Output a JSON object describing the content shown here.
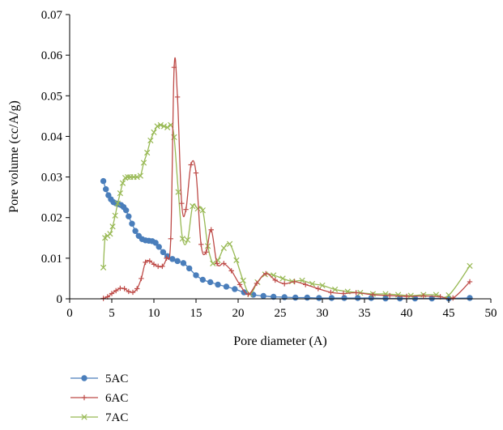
{
  "chart_data": {
    "type": "line",
    "title": "",
    "xlabel": "Pore diameter (A)",
    "ylabel": "Pore volume (cc/A/g)",
    "xlim": [
      0,
      50
    ],
    "ylim": [
      0,
      0.07
    ],
    "xticks": [
      "0",
      "5",
      "10",
      "15",
      "20",
      "25",
      "30",
      "35",
      "40",
      "45",
      "50"
    ],
    "yticks": [
      "0",
      "0.01",
      "0.02",
      "0.03",
      "0.04",
      "0.05",
      "0.06",
      "0.07"
    ],
    "grid": false,
    "legend_position": "bottom-left",
    "series": [
      {
        "name": "5AC",
        "color": "#4a7ebb",
        "marker": "circle",
        "x": [
          4.0,
          4.3,
          4.6,
          4.9,
          5.2,
          5.5,
          5.8,
          6.1,
          6.4,
          6.7,
          7.0,
          7.4,
          7.8,
          8.2,
          8.6,
          9.0,
          9.4,
          9.8,
          10.2,
          10.6,
          11.1,
          11.6,
          12.2,
          12.8,
          13.5,
          14.2,
          15.0,
          15.8,
          16.7,
          17.6,
          18.6,
          19.6,
          20.7,
          21.8,
          23.0,
          24.2,
          25.5,
          26.8,
          28.2,
          29.6,
          31.1,
          32.6,
          34.2,
          35.8,
          37.5,
          39.2,
          41.0,
          43.0,
          45.0,
          47.5
        ],
        "y": [
          0.029,
          0.027,
          0.0255,
          0.0245,
          0.0238,
          0.0235,
          0.0233,
          0.0231,
          0.0226,
          0.0218,
          0.0203,
          0.0185,
          0.0167,
          0.0155,
          0.0147,
          0.0144,
          0.0143,
          0.0142,
          0.0138,
          0.0128,
          0.0115,
          0.0105,
          0.0098,
          0.0093,
          0.0088,
          0.0075,
          0.0058,
          0.0047,
          0.0041,
          0.0035,
          0.003,
          0.0024,
          0.0016,
          0.001,
          0.0007,
          0.0005,
          0.0004,
          0.0003,
          0.0003,
          0.0002,
          0.0002,
          0.0002,
          0.0002,
          0.0002,
          0.0001,
          0.0001,
          0.0001,
          0.0001,
          0.0001,
          0.0002
        ]
      },
      {
        "name": "6AC",
        "color": "#be4b48",
        "marker": "plus",
        "x": [
          4.0,
          4.5,
          5.0,
          5.5,
          6.0,
          6.5,
          7.0,
          7.5,
          8.0,
          8.5,
          9.0,
          9.5,
          10.0,
          10.5,
          11.0,
          11.5,
          12.0,
          12.4,
          12.8,
          13.3,
          13.8,
          14.4,
          15.0,
          15.6,
          16.2,
          16.8,
          17.5,
          18.3,
          19.2,
          20.2,
          21.2,
          22.2,
          23.3,
          24.4,
          25.5,
          26.7,
          28.0,
          29.5,
          31.0,
          32.5,
          34.0,
          36.0,
          38.0,
          40.0,
          42.0,
          44.0,
          45.5,
          47.5
        ],
        "y": [
          0.0001,
          0.0005,
          0.0013,
          0.002,
          0.0026,
          0.0025,
          0.0018,
          0.0016,
          0.0025,
          0.005,
          0.009,
          0.0093,
          0.0085,
          0.008,
          0.008,
          0.01,
          0.0148,
          0.057,
          0.0497,
          0.0235,
          0.022,
          0.033,
          0.031,
          0.0134,
          0.0115,
          0.017,
          0.0087,
          0.0087,
          0.0069,
          0.0035,
          0.0011,
          0.0038,
          0.0062,
          0.0046,
          0.0037,
          0.0042,
          0.0035,
          0.0025,
          0.0016,
          0.0013,
          0.0015,
          0.001,
          0.0008,
          0.0006,
          0.0007,
          0.0005,
          0.0002,
          0.0042
        ]
      },
      {
        "name": "7AC",
        "color": "#98b954",
        "marker": "x",
        "x": [
          4.0,
          4.2,
          4.5,
          4.8,
          5.1,
          5.4,
          5.7,
          6.0,
          6.3,
          6.6,
          6.9,
          7.2,
          7.6,
          8.0,
          8.4,
          8.8,
          9.2,
          9.6,
          10.0,
          10.4,
          10.8,
          11.2,
          11.6,
          12.0,
          12.4,
          12.9,
          13.4,
          14.0,
          14.6,
          15.2,
          15.8,
          16.4,
          17.0,
          17.6,
          18.3,
          19.0,
          19.8,
          20.6,
          21.4,
          22.3,
          23.2,
          24.2,
          25.3,
          26.4,
          27.6,
          28.8,
          30.0,
          31.5,
          33.0,
          34.5,
          36.0,
          37.5,
          39.0,
          40.5,
          42.0,
          43.5,
          45.0,
          47.5
        ],
        "y": [
          0.0077,
          0.015,
          0.0155,
          0.016,
          0.0178,
          0.0205,
          0.0235,
          0.026,
          0.0285,
          0.0298,
          0.03,
          0.03,
          0.03,
          0.03,
          0.0303,
          0.0335,
          0.036,
          0.039,
          0.041,
          0.0425,
          0.0428,
          0.0425,
          0.0422,
          0.0428,
          0.0398,
          0.0263,
          0.0148,
          0.0145,
          0.0228,
          0.0222,
          0.0218,
          0.013,
          0.0087,
          0.0095,
          0.0125,
          0.0135,
          0.0095,
          0.0045,
          0.0012,
          0.0041,
          0.006,
          0.0058,
          0.005,
          0.0043,
          0.0045,
          0.0037,
          0.0033,
          0.0023,
          0.0018,
          0.0015,
          0.0012,
          0.0012,
          0.001,
          0.0008,
          0.001,
          0.001,
          0.0009,
          0.0081
        ]
      }
    ]
  }
}
